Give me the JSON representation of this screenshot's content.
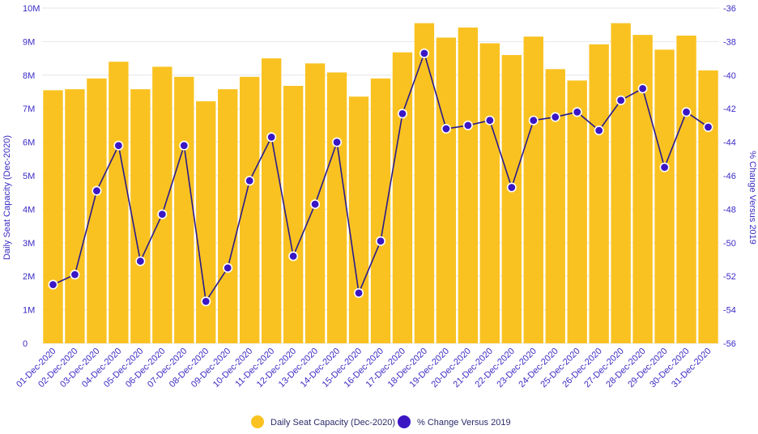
{
  "chart_data": {
    "type": "bar",
    "categories": [
      "01-Dec-2020",
      "02-Dec-2020",
      "03-Dec-2020",
      "04-Dec-2020",
      "05-Dec-2020",
      "06-Dec-2020",
      "07-Dec-2020",
      "08-Dec-2020",
      "09-Dec-2020",
      "10-Dec-2020",
      "11-Dec-2020",
      "12-Dec-2020",
      "13-Dec-2020",
      "14-Dec-2020",
      "15-Dec-2020",
      "16-Dec-2020",
      "17-Dec-2020",
      "18-Dec-2020",
      "19-Dec-2020",
      "20-Dec-2020",
      "21-Dec-2020",
      "22-Dec-2020",
      "23-Dec-2020",
      "24-Dec-2020",
      "25-Dec-2020",
      "26-Dec-2020",
      "27-Dec-2020",
      "28-Dec-2020",
      "29-Dec-2020",
      "30-Dec-2020",
      "31-Dec-2020"
    ],
    "series": [
      {
        "name": "Daily Seat Capacity (Dec-2020)",
        "type": "bar",
        "axis": "left",
        "color": "#f9c221",
        "values": [
          7.55,
          7.58,
          7.9,
          8.4,
          7.58,
          8.25,
          7.95,
          7.22,
          7.58,
          7.95,
          8.5,
          7.68,
          8.35,
          8.08,
          7.36,
          7.9,
          8.68,
          9.55,
          9.12,
          9.42,
          8.95,
          8.6,
          9.15,
          8.18,
          7.84,
          8.92,
          9.55,
          9.2,
          8.76,
          9.18,
          8.14
        ]
      },
      {
        "name": "% Change Versus 2019",
        "type": "line",
        "axis": "right",
        "color": "#3b17c4",
        "values": [
          -52.5,
          -51.9,
          -46.9,
          -44.2,
          -51.1,
          -48.3,
          -44.2,
          -53.5,
          -51.5,
          -46.3,
          -43.7,
          -50.8,
          -47.7,
          -44.0,
          -53.0,
          -49.9,
          -42.3,
          -38.7,
          -43.2,
          -43.0,
          -42.7,
          -46.7,
          -42.7,
          -42.5,
          -42.2,
          -43.3,
          -41.5,
          -40.8,
          -45.5,
          -42.2,
          -43.1
        ]
      }
    ],
    "y_left": {
      "label": "Daily Seat Capacity (Dec-2020)",
      "min": 0,
      "max": 10,
      "ticks": [
        0,
        1,
        2,
        3,
        4,
        5,
        6,
        7,
        8,
        9,
        10
      ],
      "tick_labels": [
        "0",
        "1M",
        "2M",
        "3M",
        "4M",
        "5M",
        "6M",
        "7M",
        "8M",
        "9M",
        "10M"
      ]
    },
    "y_right": {
      "label": "% Change Versus 2019",
      "min": -56,
      "max": -36,
      "ticks": [
        -56,
        -54,
        -52,
        -50,
        -48,
        -46,
        -44,
        -42,
        -40,
        -38,
        -36
      ],
      "tick_labels": [
        "-56",
        "-54",
        "-52",
        "-50",
        "-48",
        "-46",
        "-44",
        "-42",
        "-40",
        "-38",
        "-36"
      ]
    },
    "legend_position": "bottom-center",
    "grid": true
  }
}
